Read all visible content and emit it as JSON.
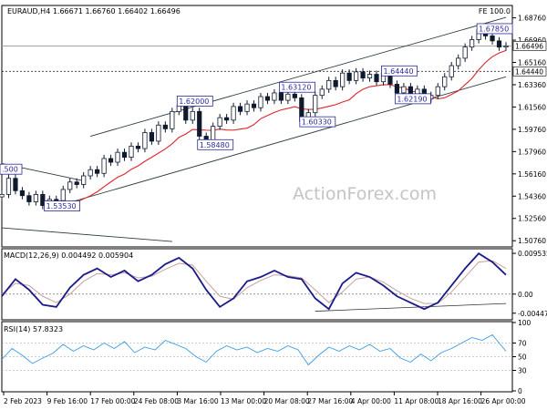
{
  "header": {
    "symbol_line": "EURAUD,H4  1.66671 1.66760 1.66402 1.66496",
    "fe_label": "FE 100.0"
  },
  "watermark": "ActionForex.com",
  "colors": {
    "price_bars": "#0f1a2e",
    "channel": "#2d3d3d",
    "sma": "#e0252a",
    "macd_main": "#1a1a8a",
    "macd_signal": "#c8a0a0",
    "rsi": "#3a9ce0",
    "label_border": "#2a2a9a",
    "grid_dotted": "#333333"
  },
  "chart_data": [
    {
      "type": "candlestick",
      "panel": "price",
      "title": "EURAUD,H4",
      "ohlc_last": [
        1.66671,
        1.6676,
        1.66402,
        1.66496
      ],
      "x_ticks": [
        "2 Feb 2023",
        "9 Feb 16:00",
        "17 Feb 00:00",
        "24 Feb 08:00",
        "3 Mar 16:00",
        "13 Mar 00:00",
        "20 Mar 08:00",
        "27 Mar 16:00",
        "4 Apr 00:00",
        "11 Apr 08:00",
        "18 Apr 16:00",
        "26 Apr 00:00"
      ],
      "y_ticks": [
        "1.68760",
        "1.66960",
        "1.65160",
        "1.63360",
        "1.61560",
        "1.59760",
        "1.57960",
        "1.56160",
        "1.54360",
        "1.52560",
        "1.50760"
      ],
      "ylim": [
        1.5026,
        1.6976
      ],
      "price_markers": [
        "1.66496",
        "1.64440"
      ],
      "horizontal_lines": [
        1.6649,
        1.6444
      ],
      "annotations": [
        {
          "text": "1.67850",
          "x": 140,
          "y": 1.6785
        },
        {
          "text": "1.64440",
          "x": 112,
          "y": 1.6444
        },
        {
          "text": "1.62190",
          "x": 116,
          "y": 1.6219
        },
        {
          "text": "1.63120",
          "x": 82,
          "y": 1.6312
        },
        {
          "text": "1.60330",
          "x": 88,
          "y": 1.6033
        },
        {
          "text": "1.62000",
          "x": 52,
          "y": 1.62
        },
        {
          "text": "1.58480",
          "x": 58,
          "y": 1.5848
        },
        {
          "text": "1.53530",
          "x": 13,
          "y": 1.5353
        },
        {
          "text": ".500",
          "x": 0,
          "y": 1.565
        }
      ],
      "series": [
        {
          "name": "Close",
          "x": [
            0,
            2,
            4,
            6,
            8,
            10,
            12,
            14,
            16,
            18,
            20,
            22,
            24,
            26,
            28,
            30,
            32,
            34,
            36,
            38,
            40,
            42,
            44,
            46,
            48,
            50,
            52,
            54,
            56,
            58,
            60,
            62,
            64,
            66,
            68,
            70,
            72,
            74,
            76,
            78,
            80,
            82,
            84,
            86,
            88,
            90,
            92,
            94,
            96,
            98,
            100,
            102,
            104,
            106,
            108,
            110,
            112,
            114,
            116,
            118,
            120,
            122,
            124,
            126,
            128,
            130,
            132,
            134,
            136,
            138,
            140,
            142,
            144,
            146,
            148
          ],
          "values": [
            1.545,
            1.558,
            1.548,
            1.544,
            1.539,
            1.545,
            1.536,
            1.541,
            1.54,
            1.549,
            1.555,
            1.553,
            1.56,
            1.565,
            1.562,
            1.574,
            1.571,
            1.579,
            1.575,
            1.584,
            1.582,
            1.595,
            1.588,
            1.601,
            1.598,
            1.612,
            1.617,
            1.605,
            1.612,
            1.592,
            1.586,
            1.6,
            1.607,
            1.605,
            1.616,
            1.612,
            1.618,
            1.615,
            1.624,
            1.621,
            1.627,
            1.621,
            1.626,
            1.623,
            1.604,
            1.611,
            1.625,
            1.63,
            1.637,
            1.632,
            1.643,
            1.637,
            1.644,
            1.639,
            1.642,
            1.636,
            1.643,
            1.634,
            1.627,
            1.632,
            1.624,
            1.63,
            1.622,
            1.625,
            1.632,
            1.64,
            1.649,
            1.655,
            1.664,
            1.67,
            1.678,
            1.673,
            1.669,
            1.664,
            1.665
          ]
        }
      ]
    },
    {
      "type": "line",
      "panel": "macd",
      "title": "MACD(12,26,9) 0.004492 0.005904",
      "y_ticks": [
        "0.009535",
        "0.00",
        "-0.004471"
      ],
      "ylim": [
        -0.0058,
        0.0104
      ],
      "series": [
        {
          "name": "MACD",
          "x": [
            0,
            4,
            8,
            12,
            16,
            20,
            24,
            28,
            32,
            36,
            40,
            44,
            48,
            52,
            56,
            60,
            64,
            68,
            72,
            76,
            80,
            84,
            88,
            92,
            96,
            100,
            104,
            108,
            112,
            116,
            120,
            124,
            128,
            132,
            136,
            140,
            144,
            148
          ],
          "values": [
            -0.0005,
            0.0035,
            0.001,
            -0.0025,
            -0.003,
            0.0015,
            0.0045,
            0.006,
            0.004,
            0.0055,
            0.003,
            0.0045,
            0.007,
            0.0085,
            0.006,
            0.001,
            -0.003,
            -0.001,
            0.003,
            0.004,
            0.0055,
            0.004,
            0.0035,
            -0.001,
            -0.0035,
            0.0025,
            0.005,
            0.004,
            0.002,
            -0.0005,
            -0.002,
            -0.0035,
            -0.002,
            0.002,
            0.006,
            0.0095,
            0.0075,
            0.0045
          ]
        },
        {
          "name": "Signal",
          "x": [
            0,
            4,
            8,
            12,
            16,
            20,
            24,
            28,
            32,
            36,
            40,
            44,
            48,
            52,
            56,
            60,
            64,
            68,
            72,
            76,
            80,
            84,
            88,
            92,
            96,
            100,
            104,
            108,
            112,
            116,
            120,
            124,
            128,
            132,
            136,
            140,
            144,
            148
          ],
          "values": [
            0.0,
            0.0025,
            0.002,
            -0.0005,
            -0.002,
            0.0,
            0.003,
            0.0048,
            0.0045,
            0.005,
            0.0038,
            0.0042,
            0.0058,
            0.0072,
            0.0068,
            0.003,
            -0.0005,
            -0.0012,
            0.0015,
            0.0032,
            0.0045,
            0.0043,
            0.0038,
            0.001,
            -0.002,
            0.0005,
            0.0035,
            0.004,
            0.0028,
            0.0008,
            -0.001,
            -0.0022,
            -0.0022,
            0.0005,
            0.004,
            0.0075,
            0.0078,
            0.006
          ]
        }
      ]
    },
    {
      "type": "line",
      "panel": "rsi",
      "title": "RSI(14) 57.8323",
      "y_ticks": [
        "100",
        "70",
        "50",
        "30",
        "0"
      ],
      "ylim": [
        0,
        100
      ],
      "series": [
        {
          "name": "RSI",
          "x": [
            0,
            3,
            6,
            9,
            12,
            15,
            18,
            21,
            24,
            27,
            30,
            33,
            36,
            39,
            42,
            45,
            48,
            51,
            54,
            57,
            60,
            63,
            66,
            69,
            72,
            75,
            78,
            81,
            84,
            87,
            90,
            93,
            96,
            99,
            102,
            105,
            108,
            111,
            114,
            117,
            120,
            123,
            126,
            129,
            132,
            135,
            138,
            141,
            144,
            147,
            148
          ],
          "values": [
            46,
            62,
            52,
            40,
            48,
            55,
            68,
            58,
            66,
            60,
            70,
            62,
            72,
            56,
            64,
            60,
            74,
            68,
            62,
            50,
            42,
            58,
            66,
            60,
            64,
            56,
            62,
            58,
            66,
            60,
            38,
            52,
            64,
            58,
            66,
            60,
            68,
            58,
            62,
            48,
            42,
            54,
            44,
            56,
            62,
            70,
            78,
            74,
            82,
            64,
            58
          ]
        }
      ]
    }
  ]
}
